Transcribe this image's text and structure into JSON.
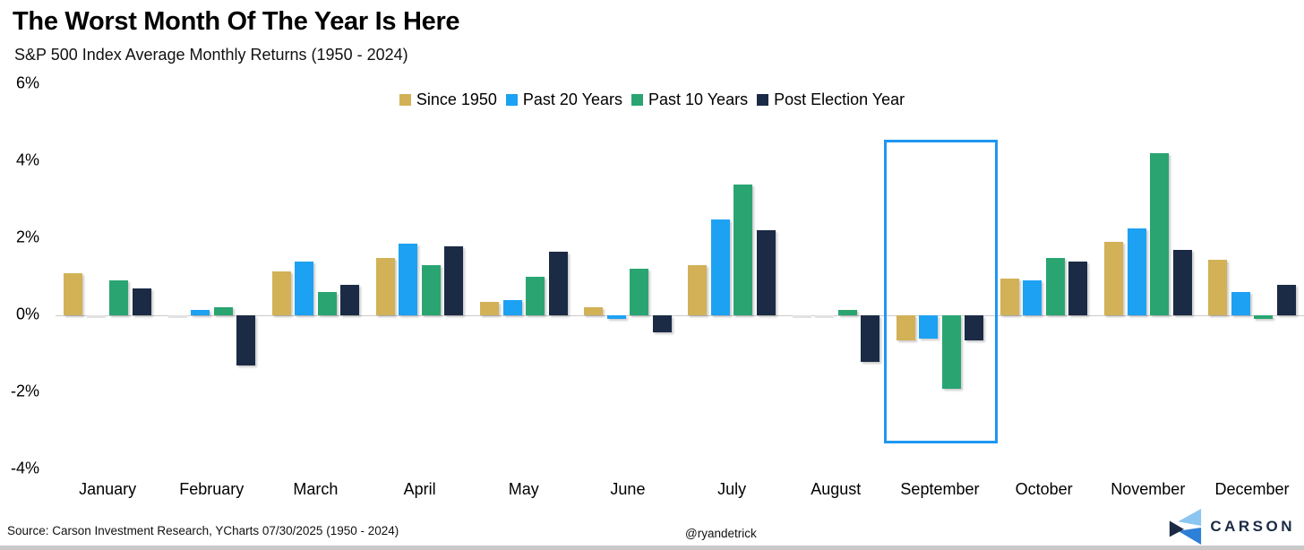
{
  "chart_data": {
    "type": "bar",
    "title": "The Worst Month Of The Year Is Here",
    "subtitle": "S&P 500 Index Average Monthly Returns (1950 - 2024)",
    "categories": [
      "January",
      "February",
      "March",
      "April",
      "May",
      "June",
      "July",
      "August",
      "September",
      "October",
      "November",
      "December"
    ],
    "series": [
      {
        "name": "Since 1950",
        "color": "#d2b157",
        "values": [
          1.1,
          0.0,
          1.15,
          1.5,
          0.35,
          0.2,
          1.3,
          0.0,
          -0.65,
          0.95,
          1.9,
          1.45
        ]
      },
      {
        "name": "Past 20 Years",
        "color": "#1da1f3",
        "values": [
          0.0,
          0.15,
          1.4,
          1.85,
          0.4,
          -0.1,
          2.5,
          0.0,
          -0.6,
          0.9,
          2.25,
          0.6
        ]
      },
      {
        "name": "Past 10 Years",
        "color": "#2aa572",
        "values": [
          0.9,
          0.2,
          0.6,
          1.3,
          1.0,
          1.2,
          3.4,
          0.15,
          -1.9,
          1.5,
          4.2,
          -0.1
        ]
      },
      {
        "name": "Post Election Year",
        "color": "#1b2b45",
        "values": [
          0.7,
          -1.3,
          0.8,
          1.8,
          1.65,
          -0.45,
          2.2,
          -1.2,
          -0.65,
          1.4,
          1.7,
          0.8
        ]
      }
    ],
    "y_ticks": [
      "6%",
      "4%",
      "2%",
      "0%",
      "-2%",
      "-4%"
    ],
    "ylim": [
      -4,
      6
    ],
    "xlabel": "",
    "ylabel": "",
    "grid": "zero-line-only",
    "legend_position": "top-center",
    "highlight": {
      "category": "September",
      "box_color": "#1e96f3"
    }
  },
  "footer": {
    "source": "Source: Carson Investment Research, YCharts 07/30/2025 (1950 - 2024)",
    "handle": "@ryandetrick",
    "brand": "CARSON"
  },
  "icons": {
    "carson_logo": "carson-logo-icon"
  },
  "colors": {
    "highlight_box": "#1e96f3",
    "zero_line": "#cbcbcb",
    "logo_light_blue": "#8ac6f1",
    "logo_mid_blue": "#2e7fd6",
    "logo_navy": "#1b2b45"
  }
}
